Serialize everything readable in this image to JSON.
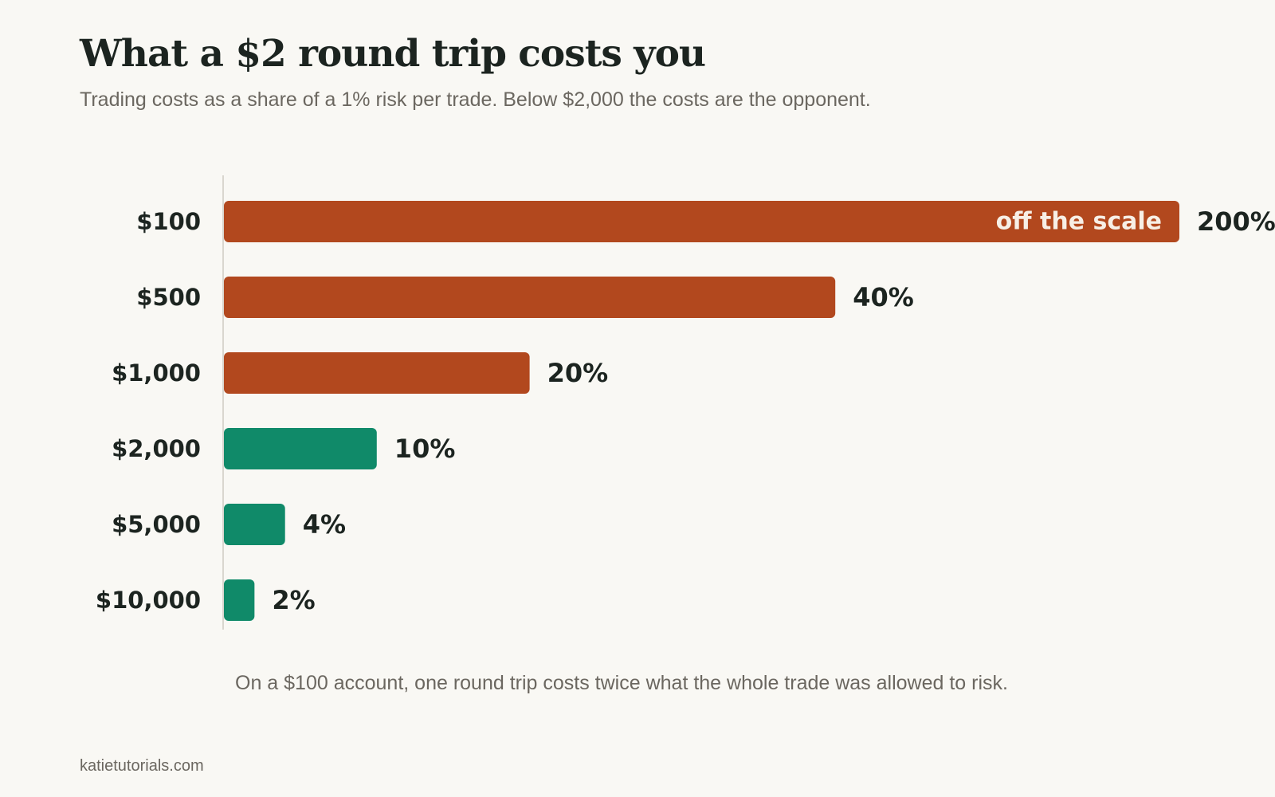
{
  "header": {
    "title": "What a $2 round trip costs you",
    "subtitle": "Trading costs as a share of a 1% risk per trade. Below $2,000 the costs are the opponent."
  },
  "annotation": "On a $100 account, one round trip costs twice what the whole trade was allowed to risk.",
  "footer": {
    "source": "katietutorials.com"
  },
  "colors": {
    "background": "#f9f8f4",
    "danger": "#b2481e",
    "safe": "#108a69",
    "text_dark": "#1c2420",
    "text_muted": "#6b6760",
    "axis": "#d9d6cf",
    "inside_label": "#f7efe6"
  },
  "chart_data": {
    "type": "bar",
    "orientation": "horizontal",
    "categories": [
      "$100",
      "$500",
      "$1,000",
      "$2,000",
      "$5,000",
      "$10,000"
    ],
    "values": [
      200,
      40,
      20,
      10,
      4,
      2
    ],
    "value_labels": [
      "200%",
      "40%",
      "20%",
      "10%",
      "4%",
      "2%"
    ],
    "bar_colors": [
      "danger",
      "danger",
      "danger",
      "safe",
      "safe",
      "safe"
    ],
    "unit": "%",
    "xlim": [
      0,
      50
    ],
    "truncated": [
      {
        "category": "$100",
        "label": "off the scale"
      }
    ],
    "title": "What a $2 round trip costs you",
    "xlabel": "",
    "ylabel": "",
    "grid": false,
    "legend": "none"
  }
}
